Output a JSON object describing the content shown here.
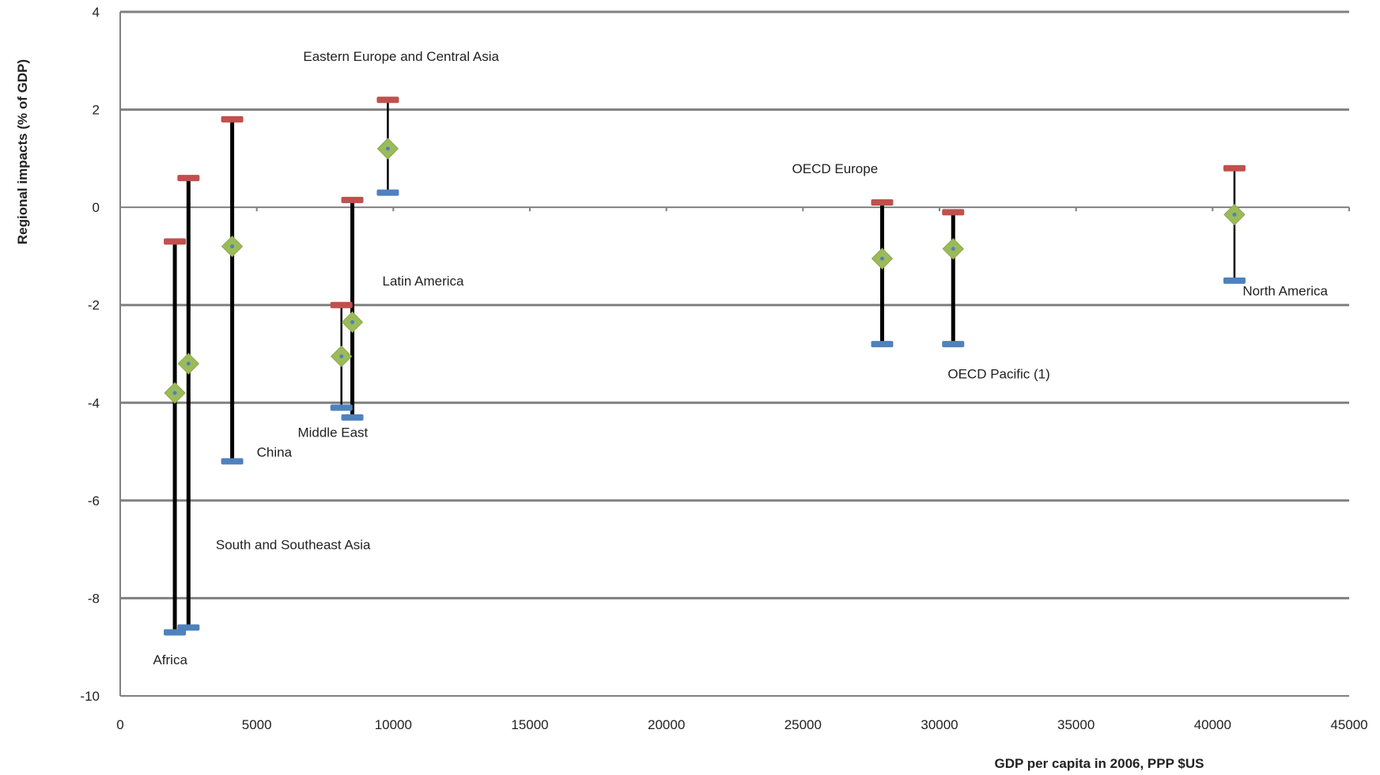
{
  "chart_data": {
    "type": "scatter",
    "title": "",
    "xlabel": "GDP per capita in 2006, PPP $US",
    "ylabel": "Regional impacts (% of GDP)",
    "xlim": [
      0,
      45000
    ],
    "ylim": [
      -10,
      4
    ],
    "x_ticks": [
      0,
      5000,
      10000,
      15000,
      20000,
      25000,
      30000,
      35000,
      40000,
      45000
    ],
    "y_ticks": [
      4,
      2,
      0,
      -2,
      -4,
      -6,
      -8,
      -10
    ],
    "grid": "horizontal",
    "colors": {
      "upper": "#c0504d",
      "lower": "#4f81bd",
      "central": "#9bbb59",
      "range_bar": "#000000",
      "gridline": "#808080"
    },
    "series": [
      {
        "points": [
          {
            "x": 2000,
            "upper": -0.7,
            "central": -3.8,
            "lower": -8.7
          },
          {
            "x": 2500,
            "upper": 0.6,
            "central": -3.2,
            "lower": -8.6
          },
          {
            "x": 4100,
            "upper": 1.8,
            "central": -0.8,
            "lower": -5.2
          },
          {
            "x": 8100,
            "upper": -2.0,
            "central": -3.05,
            "lower": -4.1
          },
          {
            "x": 8500,
            "upper": 0.15,
            "central": -2.35,
            "lower": -4.3
          },
          {
            "x": 9800,
            "upper": 2.2,
            "central": 1.2,
            "lower": 0.3
          },
          {
            "x": 27900,
            "upper": 0.1,
            "central": -1.05,
            "lower": -2.8
          },
          {
            "x": 30500,
            "upper": -0.1,
            "central": -0.85,
            "lower": -2.8
          },
          {
            "x": 40800,
            "upper": 0.8,
            "central": -0.15,
            "lower": -1.5
          }
        ]
      }
    ],
    "annotations": [
      {
        "text": "Eastern Europe and Central Asia",
        "x": 6700,
        "y": 3.0
      },
      {
        "text": "OECD Europe",
        "x": 24600,
        "y": 0.7
      },
      {
        "text": "Latin America",
        "x": 9600,
        "y": -1.6
      },
      {
        "text": "North America",
        "x": 41100,
        "y": -1.8
      },
      {
        "text": "OECD Pacific (1)",
        "x": 30300,
        "y": -3.5
      },
      {
        "text": "Middle East",
        "x": 6500,
        "y": -4.7
      },
      {
        "text": "China",
        "x": 5000,
        "y": -5.1
      },
      {
        "text": "South and Southeast Asia",
        "x": 3500,
        "y": -7.0
      },
      {
        "text": "Africa",
        "x": 1200,
        "y": -9.35
      }
    ]
  }
}
